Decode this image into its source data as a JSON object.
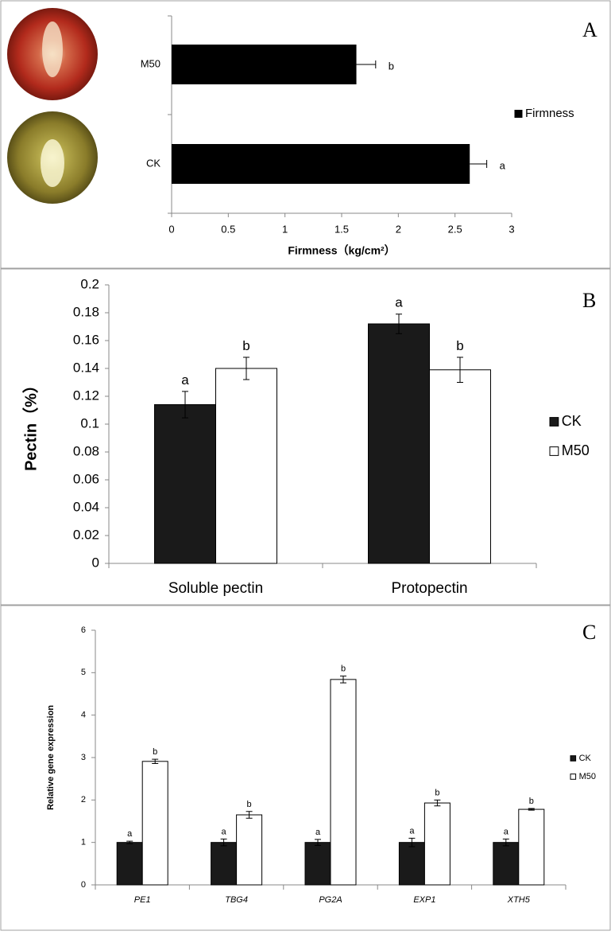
{
  "chart_data": [
    {
      "type": "bar",
      "orientation": "horizontal",
      "panel_label": "A",
      "x_label": "Firmness（kg/cm²）",
      "categories": [
        "M50",
        "CK"
      ],
      "series": [
        {
          "name": "Firmness",
          "color": "#000000",
          "values": [
            1.63,
            2.63
          ],
          "errors": [
            0.17,
            0.15
          ],
          "annotations": [
            "b",
            "a"
          ]
        }
      ],
      "xlim": [
        0,
        3
      ],
      "xticks": [
        0,
        0.5,
        1,
        1.5,
        2,
        2.5,
        3
      ],
      "grid": false,
      "legend": "right"
    },
    {
      "type": "bar",
      "orientation": "vertical",
      "panel_label": "B",
      "y_label": "Pectin（%）",
      "categories": [
        "Soluble pectin",
        "Protopectin"
      ],
      "series": [
        {
          "name": "CK",
          "color": "#1a1a1a",
          "values": [
            0.114,
            0.172
          ],
          "errors": [
            0.0095,
            0.007
          ],
          "annotations": [
            "a",
            "a"
          ]
        },
        {
          "name": "M50",
          "color": "#ffffff",
          "values": [
            0.14,
            0.139
          ],
          "errors": [
            0.008,
            0.009
          ],
          "annotations": [
            "b",
            "b"
          ]
        }
      ],
      "ylim": [
        0,
        0.2
      ],
      "yticks": [
        0,
        0.02,
        0.04,
        0.06,
        0.08,
        0.1,
        0.12,
        0.14,
        0.16,
        0.18,
        0.2
      ],
      "grid": false,
      "legend": "right"
    },
    {
      "type": "bar",
      "orientation": "vertical",
      "panel_label": "C",
      "y_label": "Relative gene expression",
      "categories": [
        "PE1",
        "TBG4",
        "PG2A",
        "EXP1",
        "XTH5"
      ],
      "series": [
        {
          "name": "CK",
          "color": "#1a1a1a",
          "values": [
            1.0,
            1.0,
            1.0,
            1.0,
            1.0
          ],
          "errors": [
            0.03,
            0.08,
            0.07,
            0.1,
            0.08
          ],
          "annotations": [
            "a",
            "a",
            "a",
            "a",
            "a"
          ]
        },
        {
          "name": "M50",
          "color": "#ffffff",
          "values": [
            2.91,
            1.65,
            4.84,
            1.93,
            1.78
          ],
          "errors": [
            0.05,
            0.08,
            0.08,
            0.07,
            0.02
          ],
          "annotations": [
            "b",
            "b",
            "b",
            "b",
            "b"
          ]
        }
      ],
      "ylim": [
        0,
        6
      ],
      "yticks": [
        0,
        1,
        2,
        3,
        4,
        5,
        6
      ],
      "grid": false,
      "legend": "right"
    }
  ]
}
